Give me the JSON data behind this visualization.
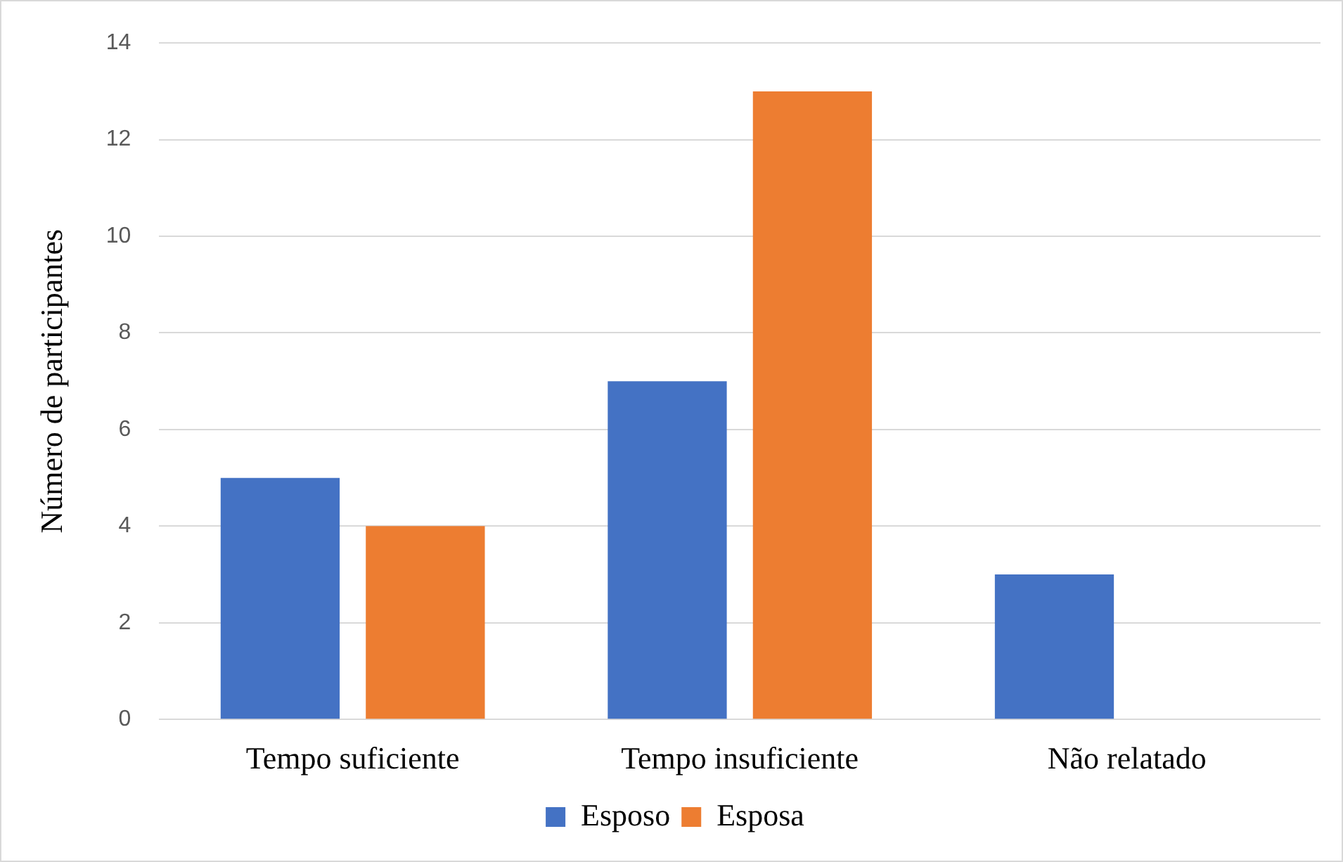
{
  "chart_data": {
    "type": "bar",
    "ylabel": "Número de participantes",
    "categories": [
      "Tempo suficiente",
      "Tempo insuficiente",
      "Não relatado"
    ],
    "series": [
      {
        "name": "Esposo",
        "color": "#4472c4",
        "values": [
          5,
          7,
          3
        ]
      },
      {
        "name": "Esposa",
        "color": "#ed7d31",
        "values": [
          4,
          13,
          0
        ]
      }
    ],
    "ylim": [
      0,
      14
    ],
    "yticks": [
      0,
      2,
      4,
      6,
      8,
      10,
      12,
      14
    ],
    "grid": "y",
    "legend": "bottom"
  }
}
